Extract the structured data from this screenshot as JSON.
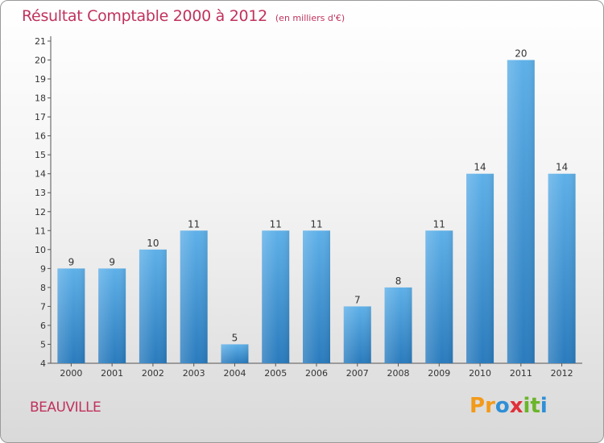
{
  "title": "Résultat Comptable 2000 à 2012",
  "subtitle": "(en milliers d'€)",
  "commune": "BEAUVILLE",
  "logo": {
    "text": "Proxiti",
    "letters": [
      {
        "char": "P",
        "color": "#f29a1a"
      },
      {
        "char": "r",
        "color": "#f29a1a"
      },
      {
        "char": "o",
        "color": "#2f8fd6"
      },
      {
        "char": "x",
        "color": "#e0303a"
      },
      {
        "char": "i",
        "color": "#6bb52b"
      },
      {
        "char": "t",
        "color": "#6bb52b"
      },
      {
        "char": "i",
        "color": "#2f8fd6"
      }
    ]
  },
  "colors": {
    "title": "#c0325d",
    "bar_top": "#5eb0e8",
    "bar_bottom": "#2a7bbd",
    "axis_text": "#333333",
    "gridline": "#d8d8d8"
  },
  "chart_data": {
    "type": "bar",
    "title": "Résultat Comptable 2000 à 2012",
    "ylabel": "en milliers d'€",
    "xlabel": "",
    "categories": [
      "2000",
      "2001",
      "2002",
      "2003",
      "2004",
      "2005",
      "2006",
      "2007",
      "2008",
      "2009",
      "2010",
      "2011",
      "2012"
    ],
    "values": [
      9,
      9,
      10,
      11,
      5,
      11,
      11,
      7,
      8,
      11,
      14,
      20,
      14
    ],
    "ylim": [
      4,
      21
    ],
    "yticks": [
      4,
      5,
      6,
      7,
      8,
      9,
      10,
      11,
      12,
      13,
      14,
      15,
      16,
      17,
      18,
      19,
      20,
      21
    ],
    "grid": false,
    "data_labels": true
  }
}
